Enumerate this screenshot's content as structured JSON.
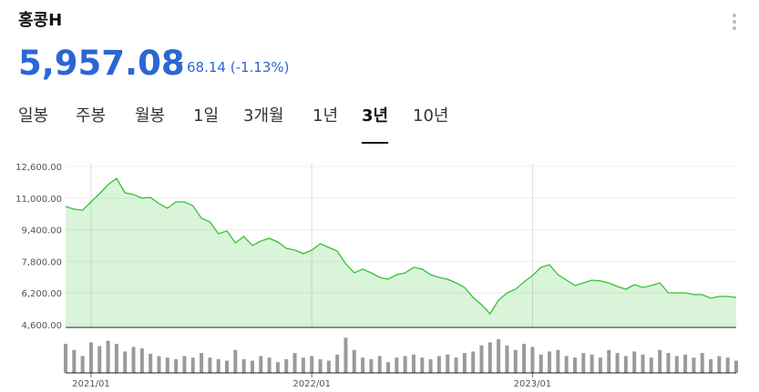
{
  "header": {
    "title": "홍콩H",
    "price": "5,957.08",
    "change": "68.14",
    "change_pct": "(-1.13%)"
  },
  "tabs": {
    "items": [
      "일봉",
      "주봉",
      "월봉",
      "1일",
      "3개월",
      "1년",
      "3년",
      "10년"
    ],
    "active": 6
  },
  "chart_data": [
    {
      "type": "area",
      "color": "#34c234",
      "categories": [
        null,
        null,
        null,
        "2021/01",
        null,
        null,
        null,
        null,
        null,
        null,
        null,
        null,
        null,
        null,
        null,
        null,
        null,
        null,
        null,
        null,
        null,
        null,
        null,
        null,
        null,
        null,
        null,
        null,
        null,
        "2022/01",
        null,
        null,
        null,
        null,
        null,
        null,
        null,
        null,
        null,
        null,
        null,
        null,
        null,
        null,
        null,
        null,
        null,
        null,
        null,
        null,
        null,
        null,
        null,
        null,
        null,
        "2023/01",
        null,
        null,
        null,
        null,
        null,
        null,
        null,
        null,
        null,
        null,
        null,
        null,
        null,
        null,
        null,
        null,
        null,
        null,
        null,
        null,
        null,
        null,
        null,
        null
      ],
      "values": [
        10580,
        10440,
        10390,
        10810,
        11220,
        11680,
        12000,
        11270,
        11180,
        11000,
        11040,
        10720,
        10490,
        10810,
        10810,
        10620,
        9980,
        9800,
        9200,
        9340,
        8740,
        9060,
        8600,
        8830,
        8970,
        8780,
        8460,
        8370,
        8190,
        8370,
        8690,
        8510,
        8320,
        7680,
        7220,
        7410,
        7220,
        6990,
        6900,
        7130,
        7220,
        7500,
        7410,
        7130,
        6990,
        6900,
        6710,
        6480,
        5980,
        5610,
        5150,
        5840,
        6210,
        6390,
        6760,
        7080,
        7500,
        7630,
        7130,
        6850,
        6580,
        6710,
        6850,
        6810,
        6710,
        6530,
        6390,
        6620,
        6480,
        6580,
        6710,
        6210,
        6210,
        6210,
        6120,
        6120,
        5930,
        6030,
        6030,
        5980
      ],
      "ylim": [
        4460,
        12740
      ],
      "yticks": [
        {
          "value": 12600,
          "label": "12,600.00"
        },
        {
          "value": 11000,
          "label": "11,000.00"
        },
        {
          "value": 9400,
          "label": "9,400.00"
        },
        {
          "value": 7800,
          "label": "7,800.00"
        },
        {
          "value": 6200,
          "label": "6,200.00"
        },
        {
          "value": 4600,
          "label": "4,600.00"
        }
      ],
      "grid": true
    },
    {
      "type": "bar",
      "color": "#9a9a9a",
      "values": [
        38,
        30,
        22,
        40,
        35,
        42,
        38,
        28,
        34,
        32,
        25,
        22,
        20,
        18,
        22,
        20,
        26,
        20,
        18,
        16,
        30,
        18,
        16,
        22,
        20,
        14,
        18,
        26,
        20,
        22,
        18,
        16,
        24,
        46,
        30,
        20,
        18,
        22,
        14,
        20,
        22,
        24,
        20,
        18,
        22,
        24,
        20,
        26,
        28,
        36,
        40,
        44,
        36,
        30,
        38,
        34,
        24,
        28,
        30,
        22,
        20,
        26,
        24,
        20,
        30,
        26,
        22,
        28,
        24,
        20,
        30,
        26,
        22,
        24,
        20,
        26,
        18,
        22,
        20,
        16
      ],
      "ylim": [
        0,
        50
      ]
    }
  ]
}
